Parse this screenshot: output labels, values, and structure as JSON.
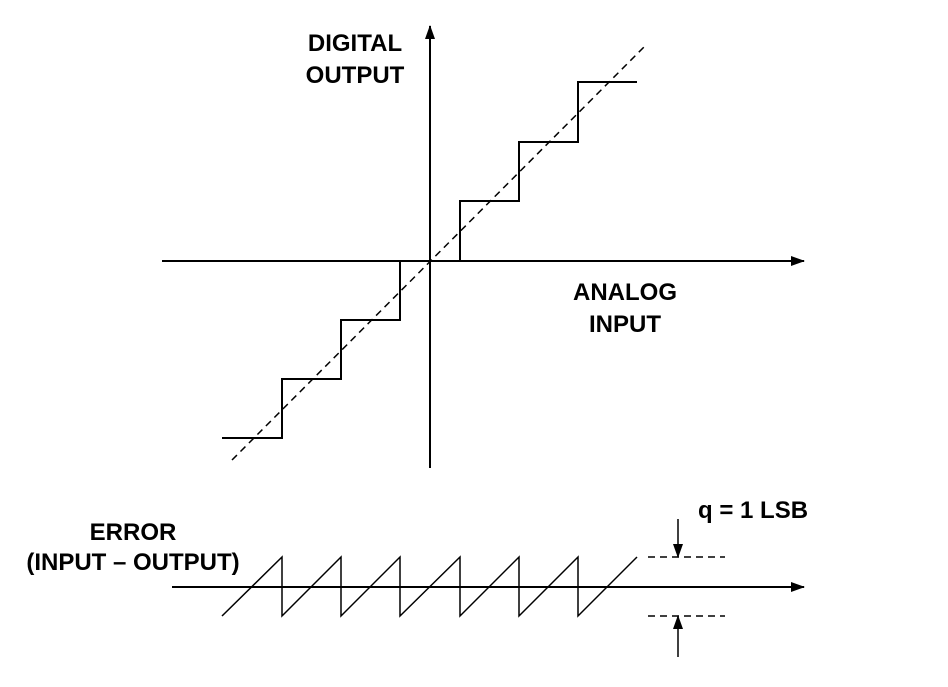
{
  "labels": {
    "y_axis": [
      "DIGITAL",
      "OUTPUT"
    ],
    "x_axis": [
      "ANALOG",
      "INPUT"
    ],
    "error": [
      "ERROR",
      "(INPUT – OUTPUT)"
    ],
    "quantum": "q = 1 LSB"
  },
  "colors": {
    "stroke": "#000000",
    "background": "#ffffff"
  }
}
